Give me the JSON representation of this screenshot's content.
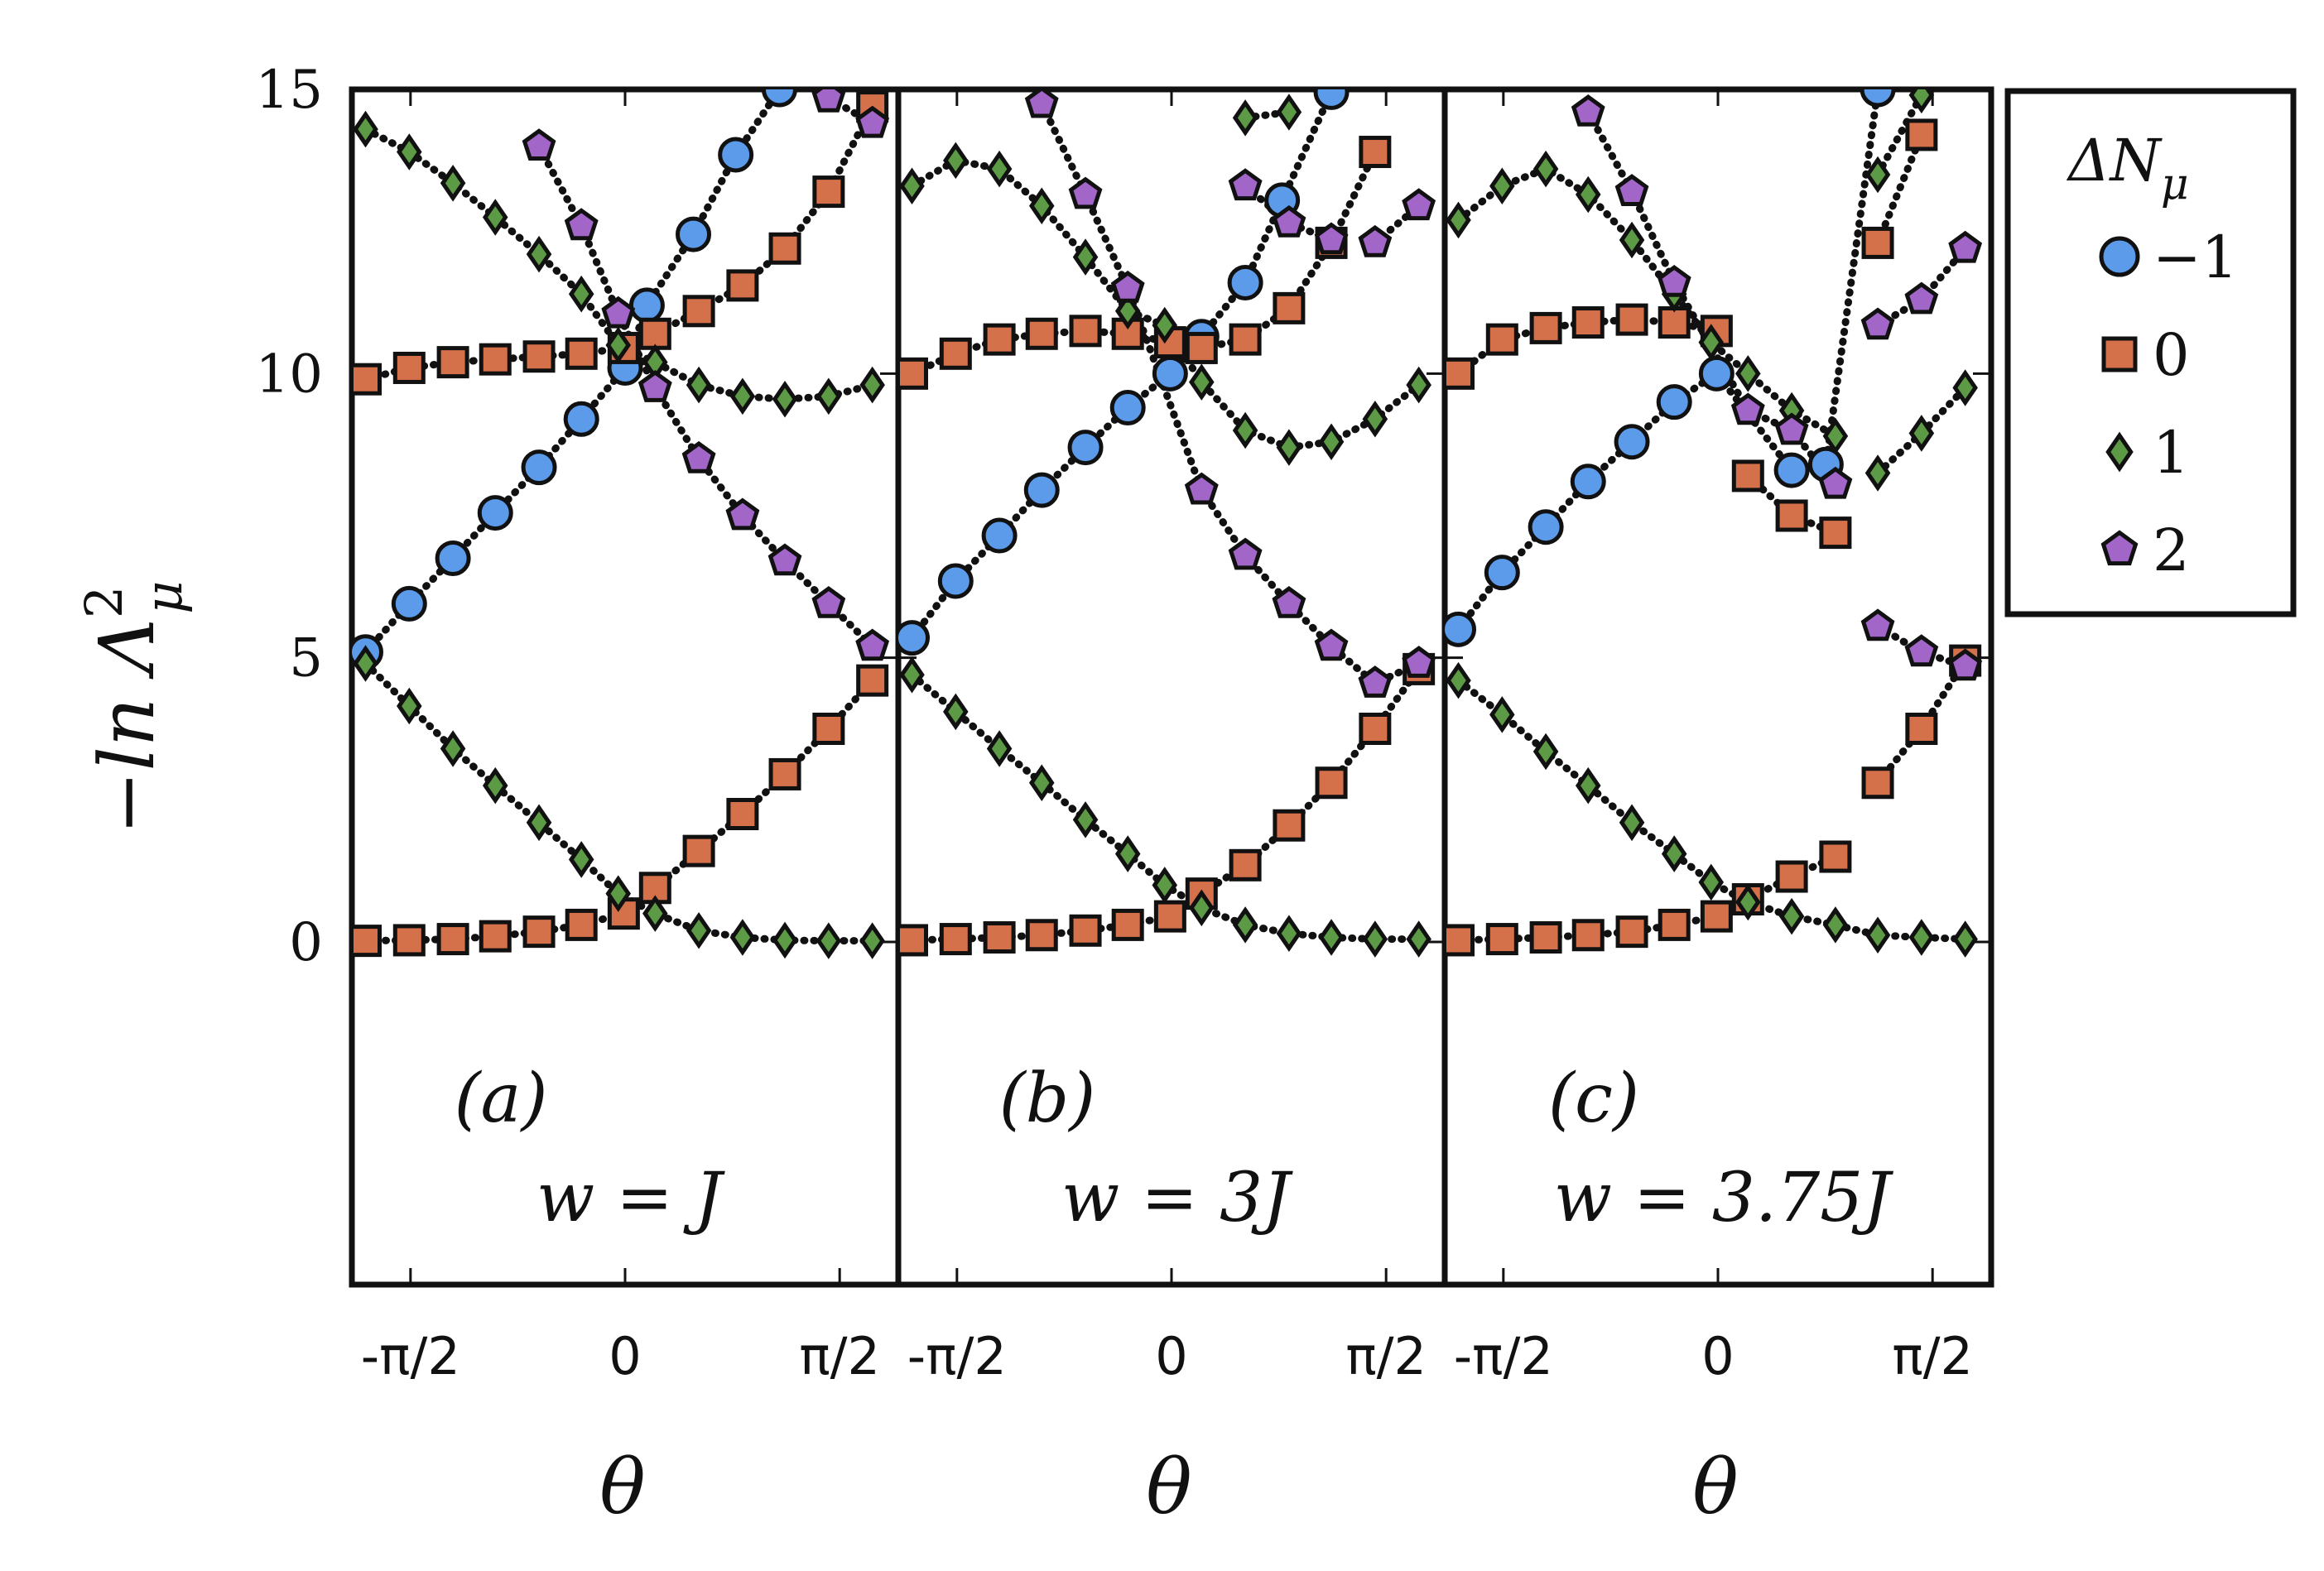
{
  "chart_data": {
    "type": "scatter",
    "ylabel": "−ln Λ",
    "ylabel_sup": "2",
    "ylabel_sub": "μ",
    "ylim": [
      -6,
      15
    ],
    "yticks": [
      "0",
      "5",
      "10",
      "15"
    ],
    "xlim": [
      -2.0,
      2.0
    ],
    "xticks": [
      "-π/2",
      "0",
      "π/2"
    ],
    "grid": false,
    "legend": {
      "title": "ΔN",
      "title_sub": "μ",
      "placement": "right",
      "entries": [
        {
          "label": "−1",
          "marker": "circle",
          "color": "#5b9bea"
        },
        {
          "label": "0",
          "marker": "square",
          "color": "#d4704a"
        },
        {
          "label": "1",
          "marker": "diamond",
          "color": "#5d9a45"
        },
        {
          "label": "2",
          "marker": "pentagon",
          "color": "#a265c8"
        }
      ]
    },
    "panels": [
      {
        "tag": "(a)",
        "param": "w = J",
        "xlabel": "θ",
        "series": [
          {
            "marker": "circle",
            "x": [
              -1.9,
              -1.58,
              -1.26,
              -0.95,
              -0.63,
              -0.32,
              0,
              0.16,
              0.5,
              0.81,
              1.13
            ],
            "y": [
              5.1,
              5.95,
              6.75,
              7.55,
              8.35,
              9.2,
              10.1,
              11.2,
              12.45,
              13.85,
              15
            ]
          },
          {
            "marker": "square",
            "x": [
              -1.9,
              -1.58,
              -1.26,
              -0.95,
              -0.63,
              -0.32,
              -0.01,
              0.22,
              0.54,
              0.86,
              1.17,
              1.49,
              1.81
            ],
            "y": [
              9.9,
              10.1,
              10.2,
              10.25,
              10.3,
              10.35,
              10.45,
              10.7,
              11.1,
              11.55,
              12.2,
              13.2,
              14.7
            ]
          },
          {
            "marker": "square",
            "x": [
              -1.9,
              -1.58,
              -1.26,
              -0.95,
              -0.63,
              -0.32,
              -0.01,
              0.22,
              0.54,
              0.86,
              1.17,
              1.49,
              1.81
            ],
            "y": [
              0.02,
              0.03,
              0.05,
              0.1,
              0.18,
              0.3,
              0.5,
              0.95,
              1.6,
              2.25,
              2.95,
              3.75,
              4.6
            ]
          },
          {
            "marker": "diamond",
            "x": [
              -1.9,
              -1.58,
              -1.26,
              -0.95,
              -0.63,
              -0.32,
              -0.05,
              0.22,
              0.54,
              0.86,
              1.17,
              1.49,
              1.81
            ],
            "y": [
              14.3,
              13.9,
              13.35,
              12.75,
              12.1,
              11.4,
              10.5,
              10.2,
              9.8,
              9.6,
              9.55,
              9.6,
              9.8
            ]
          },
          {
            "marker": "diamond",
            "x": [
              -1.9,
              -1.58,
              -1.26,
              -0.95,
              -0.63,
              -0.32,
              -0.05,
              0.22,
              0.54,
              0.86,
              1.17,
              1.49,
              1.81
            ],
            "y": [
              4.9,
              4.15,
              3.4,
              2.75,
              2.1,
              1.45,
              0.85,
              0.5,
              0.2,
              0.08,
              0.03,
              0.02,
              0.02
            ]
          },
          {
            "marker": "pentagon",
            "x": [
              -0.63,
              -0.32,
              -0.05,
              0.22,
              0.54,
              0.86,
              1.17,
              1.49,
              1.81
            ],
            "y": [
              14.0,
              12.6,
              11.05,
              9.75,
              8.5,
              7.5,
              6.7,
              5.95,
              5.2
            ]
          },
          {
            "marker": "pentagon",
            "x": [
              1.49,
              1.81
            ],
            "y": [
              14.85,
              14.4
            ]
          }
        ]
      },
      {
        "tag": "(b)",
        "param": "w = 3J",
        "xlabel": "θ",
        "series": [
          {
            "marker": "circle",
            "x": [
              -1.9,
              -1.58,
              -1.26,
              -0.95,
              -0.63,
              -0.32,
              -0.01,
              0.22,
              0.54,
              0.81,
              1.17
            ],
            "y": [
              5.35,
              6.35,
              7.15,
              7.95,
              8.7,
              9.4,
              10.0,
              10.65,
              11.6,
              13.05,
              14.95
            ]
          },
          {
            "marker": "square",
            "x": [
              -1.9,
              -1.58,
              -1.26,
              -0.95,
              -0.63,
              -0.32,
              -0.01,
              0.22,
              0.54,
              0.86,
              1.17,
              1.49
            ],
            "y": [
              10.0,
              10.35,
              10.6,
              10.7,
              10.75,
              10.7,
              10.55,
              10.45,
              10.6,
              11.15,
              12.3,
              13.9
            ]
          },
          {
            "marker": "square",
            "x": [
              -1.9,
              -1.58,
              -1.26,
              -0.95,
              -0.63,
              -0.32,
              -0.01,
              0.22,
              0.54,
              0.86,
              1.17,
              1.49,
              1.81
            ],
            "y": [
              0.03,
              0.05,
              0.08,
              0.12,
              0.2,
              0.3,
              0.45,
              0.85,
              1.35,
              2.05,
              2.8,
              3.75,
              4.8
            ]
          },
          {
            "marker": "diamond",
            "x": [
              -1.9,
              -1.58,
              -1.26,
              -0.95,
              -0.63,
              -0.32,
              -0.05,
              0.22,
              0.54,
              0.86,
              1.17,
              1.49,
              1.81
            ],
            "y": [
              13.3,
              13.75,
              13.6,
              12.95,
              12.05,
              11.1,
              10.85,
              9.85,
              9.0,
              8.7,
              8.8,
              9.2,
              9.8
            ]
          },
          {
            "marker": "diamond",
            "x": [
              0.54,
              0.86
            ],
            "y": [
              14.5,
              14.6
            ]
          },
          {
            "marker": "diamond",
            "x": [
              -1.9,
              -1.58,
              -1.26,
              -0.95,
              -0.63,
              -0.32,
              -0.05,
              0.22,
              0.54,
              0.86,
              1.17,
              1.49,
              1.81
            ],
            "y": [
              4.7,
              4.05,
              3.4,
              2.8,
              2.15,
              1.55,
              1.0,
              0.6,
              0.3,
              0.15,
              0.08,
              0.05,
              0.05
            ]
          },
          {
            "marker": "pentagon",
            "x": [
              -0.95,
              -0.63,
              -0.32,
              0.22,
              0.54,
              0.86,
              1.17,
              1.49,
              1.81
            ],
            "y": [
              14.75,
              13.15,
              11.5,
              7.95,
              6.8,
              5.95,
              5.2,
              4.55,
              4.9
            ]
          },
          {
            "marker": "pentagon",
            "x": [
              0.54,
              0.86,
              1.17
            ],
            "y": [
              13.3,
              12.65,
              12.35
            ]
          },
          {
            "marker": "pentagon",
            "x": [
              1.49,
              1.81
            ],
            "y": [
              12.3,
              12.95
            ]
          }
        ]
      },
      {
        "tag": "(c)",
        "param": "w = 3.75J",
        "xlabel": "θ",
        "series": [
          {
            "marker": "circle",
            "x": [
              -1.9,
              -1.58,
              -1.26,
              -0.95,
              -0.63,
              -0.32,
              -0.01,
              0.54,
              0.79,
              1.17
            ],
            "y": [
              5.5,
              6.5,
              7.3,
              8.1,
              8.8,
              9.5,
              10.0,
              8.3,
              8.4,
              15
            ]
          },
          {
            "marker": "square",
            "x": [
              -1.9,
              -1.58,
              -1.26,
              -0.95,
              -0.63,
              -0.32,
              -0.01
            ],
            "y": [
              10.0,
              10.6,
              10.8,
              10.9,
              10.95,
              10.9,
              10.75
            ]
          },
          {
            "marker": "square",
            "x": [
              0.22,
              0.54,
              0.86
            ],
            "y": [
              8.2,
              7.5,
              7.2
            ]
          },
          {
            "marker": "square",
            "x": [
              1.17,
              1.49
            ],
            "y": [
              12.3,
              14.2
            ]
          },
          {
            "marker": "square",
            "x": [
              -1.9,
              -1.58,
              -1.26,
              -0.95,
              -0.63,
              -0.32,
              -0.01,
              0.22,
              0.54,
              0.86
            ],
            "y": [
              0.03,
              0.05,
              0.08,
              0.12,
              0.18,
              0.3,
              0.45,
              0.75,
              1.15,
              1.5
            ]
          },
          {
            "marker": "square",
            "x": [
              1.17,
              1.49,
              1.81
            ],
            "y": [
              2.8,
              3.75,
              4.95
            ]
          },
          {
            "marker": "diamond",
            "x": [
              -1.9,
              -1.58,
              -1.26,
              -0.95,
              -0.63,
              -0.32,
              -0.05,
              0.22,
              0.54,
              0.86
            ],
            "y": [
              12.7,
              13.3,
              13.6,
              13.15,
              12.35,
              11.4,
              10.55,
              10.0,
              9.35,
              8.9
            ]
          },
          {
            "marker": "diamond",
            "x": [
              1.17,
              1.49,
              1.81
            ],
            "y": [
              8.25,
              8.95,
              9.75
            ]
          },
          {
            "marker": "diamond",
            "x": [
              1.17,
              1.49
            ],
            "y": [
              13.5,
              14.9
            ]
          },
          {
            "marker": "diamond",
            "x": [
              -1.9,
              -1.58,
              -1.26,
              -0.95,
              -0.63,
              -0.32,
              -0.05,
              0.22,
              0.54,
              0.86,
              1.17,
              1.49,
              1.81
            ],
            "y": [
              4.6,
              4.0,
              3.35,
              2.75,
              2.1,
              1.55,
              1.05,
              0.7,
              0.45,
              0.3,
              0.12,
              0.08,
              0.05
            ]
          },
          {
            "marker": "pentagon",
            "x": [
              -0.95,
              -0.63,
              -0.32,
              0.22,
              0.54,
              0.86
            ],
            "y": [
              14.6,
              13.2,
              11.6,
              9.35,
              9.0,
              8.05
            ]
          },
          {
            "marker": "pentagon",
            "x": [
              1.17,
              1.49,
              1.81
            ],
            "y": [
              10.85,
              11.3,
              12.2
            ]
          },
          {
            "marker": "pentagon",
            "x": [
              1.17,
              1.49,
              1.81
            ],
            "y": [
              5.55,
              5.1,
              4.85
            ]
          }
        ]
      }
    ]
  }
}
